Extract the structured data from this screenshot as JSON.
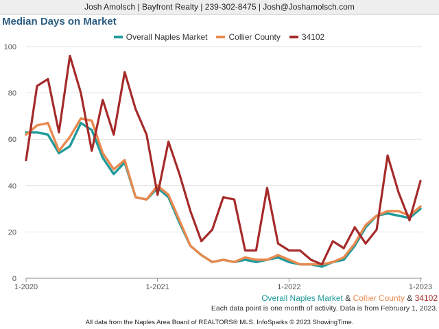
{
  "header": {
    "contact": "Josh Amolsch | Bayfront Realty | 239-302-8475 | Josh@Joshamolsch.com"
  },
  "chart_title": "Median Days on Market",
  "colors": {
    "naples": "#1f9a9a",
    "collier": "#e8894f",
    "zip": "#a52a2a",
    "title": "#2a5d80"
  },
  "subtitle": {
    "series_a": "Overall Naples Market",
    "amp1": " & ",
    "series_b": "Collier County",
    "amp2": " & ",
    "series_c": "34102"
  },
  "note": "Each data point is one month of activity. Data is from February 1, 2023.",
  "footer": "All data from the Naples Area Board of REALTORS® MLS. InfoSparks © 2023 ShowingTime.",
  "chart_data": {
    "type": "line",
    "title": "Median Days on Market",
    "x": [
      "2020-01",
      "2020-02",
      "2020-03",
      "2020-04",
      "2020-05",
      "2020-06",
      "2020-07",
      "2020-08",
      "2020-09",
      "2020-10",
      "2020-11",
      "2020-12",
      "2021-01",
      "2021-02",
      "2021-03",
      "2021-04",
      "2021-05",
      "2021-06",
      "2021-07",
      "2021-08",
      "2021-09",
      "2021-10",
      "2021-11",
      "2021-12",
      "2022-01",
      "2022-02",
      "2022-03",
      "2022-04",
      "2022-05",
      "2022-06",
      "2022-07",
      "2022-08",
      "2022-09",
      "2022-10",
      "2022-11",
      "2022-12",
      "2023-01"
    ],
    "xticks": [
      "1-2020",
      "1-2021",
      "1-2022",
      "1-2023"
    ],
    "yticks": [
      0,
      20,
      40,
      60,
      80,
      100
    ],
    "ylim": [
      0,
      100
    ],
    "grid": true,
    "legend_position": "top",
    "series": [
      {
        "name": "Overall Naples Market",
        "color": "#1f9a9a",
        "values": [
          63,
          63,
          62,
          54,
          57,
          67,
          64,
          52,
          45,
          50,
          35,
          34,
          39,
          35,
          24,
          14,
          10,
          7,
          8,
          7,
          8,
          7,
          8,
          9,
          7,
          6,
          6,
          5,
          7,
          8,
          14,
          22,
          27,
          28,
          27,
          26,
          30
        ]
      },
      {
        "name": "Collier County",
        "color": "#e8894f",
        "values": [
          62,
          66,
          67,
          55,
          61,
          69,
          68,
          54,
          47,
          51,
          35,
          34,
          40,
          36,
          25,
          14,
          10,
          7,
          8,
          7,
          9,
          8,
          8,
          10,
          8,
          6,
          6,
          6,
          7,
          9,
          15,
          23,
          27,
          29,
          29,
          27,
          31
        ]
      },
      {
        "name": "34102",
        "color": "#a52a2a",
        "values": [
          51,
          83,
          86,
          63,
          96,
          80,
          55,
          77,
          62,
          89,
          73,
          62,
          36,
          59,
          45,
          29,
          16,
          21,
          35,
          34,
          12,
          12,
          39,
          15,
          12,
          12,
          8,
          6,
          16,
          13,
          22,
          15,
          21,
          53,
          37,
          25,
          42
        ]
      }
    ]
  }
}
